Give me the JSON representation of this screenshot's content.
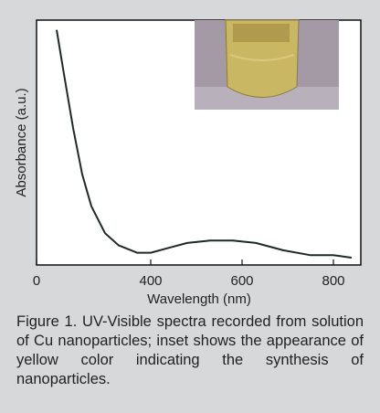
{
  "chart_data": {
    "type": "line",
    "y_label": "Absorbance (a.u.)",
    "x_label": "Wavelength (nm)",
    "x": [
      194,
      210,
      230,
      250,
      270,
      300,
      330,
      370,
      400,
      440,
      480,
      530,
      580,
      630,
      690,
      750,
      800,
      840
    ],
    "values": [
      0.96,
      0.78,
      0.56,
      0.37,
      0.24,
      0.13,
      0.08,
      0.05,
      0.05,
      0.07,
      0.09,
      0.1,
      0.1,
      0.09,
      0.06,
      0.04,
      0.04,
      0.03
    ],
    "color": "#1f2a22",
    "xlim": [
      150,
      860
    ],
    "xticks": [
      {
        "value": 150,
        "label": "0"
      },
      400,
      600,
      800
    ],
    "ylim": [
      0,
      1
    ],
    "caption": "Figure 1. UV-Visible spectra recorded from solution of Cu nanoparticles; inset shows the appearance of yellow color indicating the synthesis of nanoparticles."
  }
}
